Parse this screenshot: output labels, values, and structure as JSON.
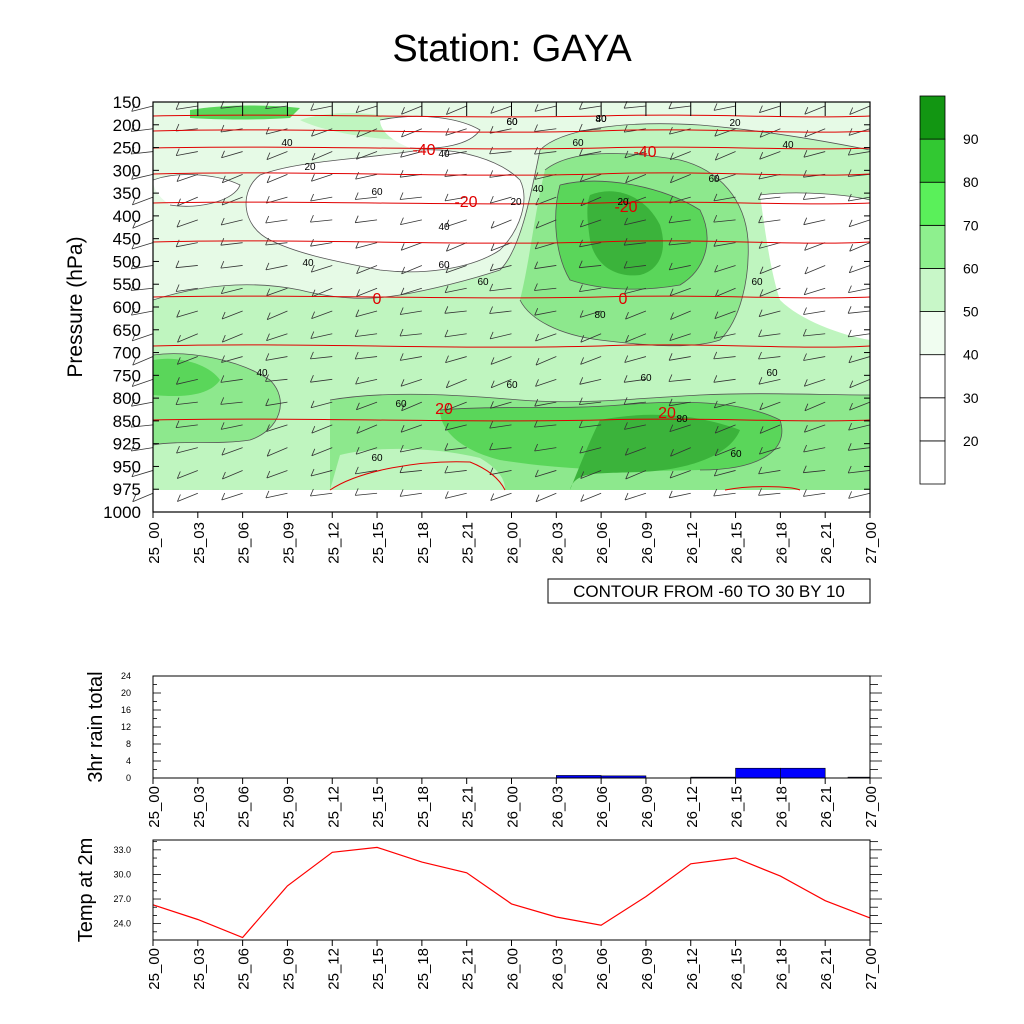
{
  "title": "Station: GAYA",
  "time_ticks": [
    "25_00",
    "25_03",
    "25_06",
    "25_09",
    "25_12",
    "25_15",
    "25_18",
    "25_21",
    "26_00",
    "26_03",
    "26_06",
    "26_09",
    "26_12",
    "26_15",
    "26_18",
    "26_21",
    "27_00"
  ],
  "chart_data": [
    {
      "type": "heatmap",
      "ylabel": "Pressure (hPa)",
      "pressure_levels": [
        150,
        200,
        250,
        300,
        350,
        400,
        450,
        500,
        550,
        600,
        650,
        700,
        750,
        800,
        850,
        925,
        950,
        975,
        1000
      ],
      "contour_note": "CONTOUR FROM -60 TO 30 BY 10",
      "colorbar": {
        "levels": [
          20,
          30,
          40,
          50,
          60,
          70,
          80,
          90
        ],
        "labels": [
          "20",
          "30",
          "40",
          "50",
          "60",
          "70",
          "80",
          "90"
        ],
        "colors": [
          "#ffffff",
          "#ffffff",
          "#ffffff",
          "#f0fdf0",
          "#c8f7c8",
          "#8ef08e",
          "#5af05a",
          "#32c832",
          "#129612"
        ]
      },
      "fill_colors": {
        "lt50": "#ffffff",
        "50": "#e6fae6",
        "60": "#bff5bf",
        "70": "#8de88d",
        "80": "#5ad65a",
        "90": "#3bb33b"
      },
      "rh_contour_labels": [
        "60",
        "40",
        "40",
        "60",
        "40",
        "20",
        "40",
        "20",
        "60",
        "60",
        "40",
        "20",
        "40",
        "40",
        "60",
        "60",
        "60",
        "80",
        "20",
        "40",
        "60",
        "60",
        "60",
        "60",
        "60",
        "80",
        "60",
        "60",
        "80"
      ],
      "temperature_labels": [
        "-40",
        "-40",
        "-20",
        "-20",
        "0",
        "0",
        "20",
        "20"
      ]
    },
    {
      "type": "bar",
      "ylabel": "3hr rain total",
      "ylim": [
        0,
        24
      ],
      "yticks": [
        "0",
        "4",
        "8",
        "12",
        "16",
        "20",
        "24"
      ],
      "values": [
        0,
        0,
        0,
        0,
        0,
        0,
        0,
        0,
        0,
        0.6,
        0.5,
        0,
        0.2,
        2.3,
        2.3,
        0,
        0.2
      ],
      "color": "#0000ff"
    },
    {
      "type": "line",
      "ylabel": "Temp at 2m",
      "ylim": [
        22.0,
        34.2
      ],
      "yticks": [
        "24.0",
        "27.0",
        "30.0",
        "33.0"
      ],
      "values": [
        26.3,
        24.5,
        22.3,
        28.6,
        32.7,
        33.3,
        31.5,
        30.2,
        26.4,
        24.8,
        23.8,
        27.3,
        31.3,
        32.0,
        29.8,
        26.8,
        24.7
      ],
      "color": "#ff0000"
    }
  ]
}
